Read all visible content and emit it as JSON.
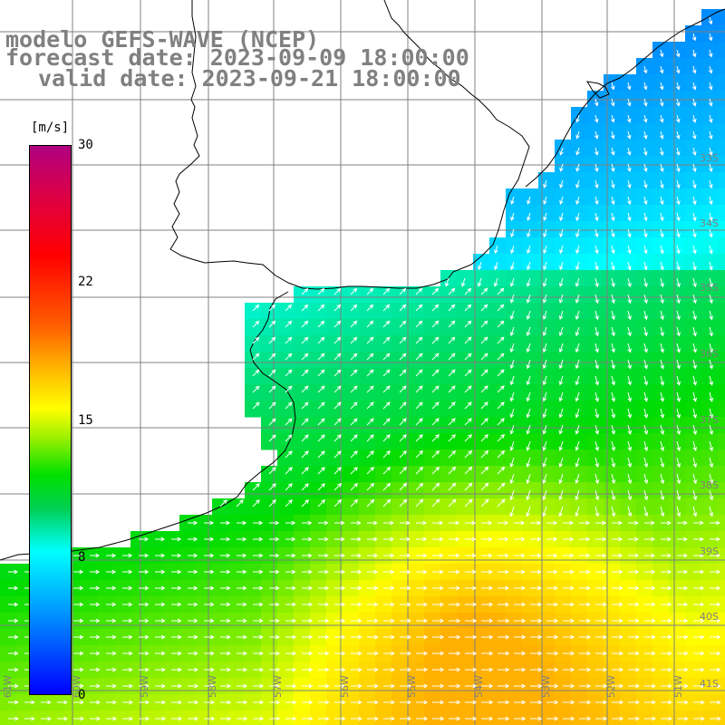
{
  "title": {
    "line1": "modelo GEFS-WAVE (NCEP)",
    "line2": "forecast date: 2023-09-09 18:00:00",
    "line3": "valid date: 2023-09-21 18:00:00"
  },
  "colorbar": {
    "unit": "[m/s]",
    "ticks": [
      "30",
      "22",
      "15",
      "8",
      "0"
    ],
    "colors": [
      "#0000ff",
      "#00a0ff",
      "#00ffff",
      "#00d050",
      "#00e000",
      "#a0f000",
      "#ffff00",
      "#ffb000",
      "#ff6000",
      "#ff0000",
      "#e00040",
      "#b00080"
    ]
  },
  "grid": {
    "lat_labels": [
      "33S",
      "34S",
      "35S",
      "36S",
      "37S",
      "38S",
      "39S",
      "40S",
      "41S"
    ],
    "lon_labels": [
      "61W",
      "60W",
      "59W",
      "58W",
      "57W",
      "56W",
      "55W",
      "54W",
      "53W",
      "52W",
      "51W"
    ]
  }
}
